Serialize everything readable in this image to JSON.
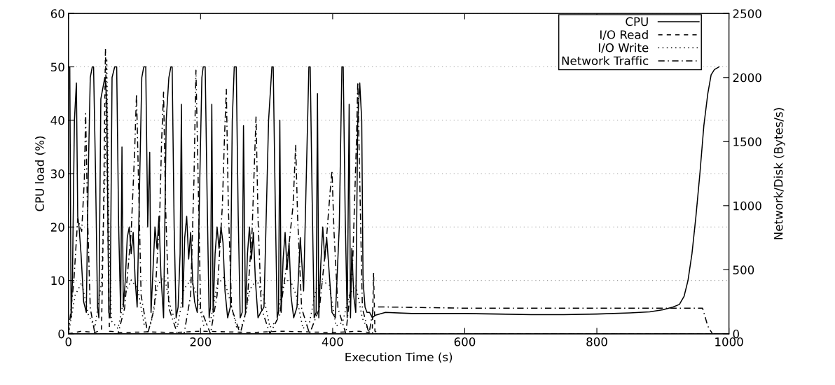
{
  "chart_data": {
    "type": "line",
    "xlabel": "Execution Time (s)",
    "ylabel": "CPU load (%)",
    "y2label": "Network/Disk (Bytes/s)",
    "xlim": [
      0,
      1000
    ],
    "xticks": [
      0,
      200,
      400,
      600,
      800,
      1000
    ],
    "ylim": [
      0,
      60
    ],
    "yticks": [
      0,
      10,
      20,
      30,
      40,
      50,
      60
    ],
    "y2lim": [
      0,
      2500
    ],
    "y2ticks": [
      0,
      500,
      1000,
      1500,
      2000,
      2500
    ],
    "grid": "y",
    "legend": "top right",
    "series": [
      {
        "name": "CPU",
        "color": "#000000",
        "line_style": "solid",
        "x": [
          0,
          2,
          4,
          6,
          9,
          12,
          14,
          16,
          19,
          23,
          27,
          30,
          33,
          36,
          38,
          41,
          44,
          46,
          49,
          52,
          55,
          58,
          61,
          63,
          66,
          70,
          73,
          76,
          79,
          81,
          83,
          86,
          89,
          92,
          95,
          98,
          101,
          104,
          108,
          111,
          114,
          117,
          120,
          123,
          125,
          128,
          131,
          134,
          137,
          140,
          144,
          148,
          152,
          155,
          157,
          160,
          163,
          166,
          169,
          171,
          173,
          176,
          179,
          182,
          185,
          188,
          191,
          195,
          199,
          202,
          204,
          207,
          210,
          213,
          215,
          217,
          219,
          222,
          225,
          228,
          231,
          234,
          237,
          241,
          245,
          248,
          251,
          254,
          257,
          260,
          263,
          265,
          268,
          271,
          274,
          277,
          280,
          283,
          287,
          291,
          296,
          303,
          308,
          310,
          313,
          316,
          318,
          320,
          322,
          325,
          328,
          331,
          334,
          337,
          341,
          346,
          351,
          356,
          364,
          366,
          369,
          372,
          375,
          377,
          379,
          382,
          385,
          388,
          391,
          395,
          399,
          404,
          410,
          414,
          416,
          419,
          422,
          425,
          427,
          429,
          432,
          435,
          438,
          441,
          444,
          446,
          449,
          452,
          456,
          460,
          465,
          480,
          520,
          560,
          600,
          650,
          700,
          750,
          800,
          850,
          880,
          900,
          915,
          925,
          932,
          938,
          944,
          950,
          956,
          962,
          968,
          973,
          978,
          985
        ],
        "values": [
          50,
          50,
          3,
          10,
          40,
          47,
          22,
          20,
          15,
          6,
          4,
          30,
          48,
          50,
          50,
          30,
          5,
          3,
          44,
          46,
          48,
          44,
          4,
          3,
          48,
          50,
          50,
          20,
          4,
          35,
          5,
          10,
          18,
          20,
          15,
          19,
          10,
          5,
          30,
          48,
          50,
          50,
          20,
          34,
          4,
          12,
          20,
          16,
          22,
          11,
          3,
          40,
          48,
          50,
          50,
          20,
          3,
          5,
          15,
          43,
          5,
          18,
          22,
          14,
          19,
          10,
          6,
          4,
          30,
          48,
          50,
          50,
          25,
          3,
          5,
          43,
          4,
          15,
          20,
          16,
          20,
          17,
          8,
          3,
          5,
          40,
          50,
          50,
          22,
          3,
          4,
          39,
          4,
          15,
          20,
          14,
          19,
          10,
          3,
          4,
          5,
          40,
          50,
          50,
          25,
          3,
          4,
          40,
          4,
          14,
          19,
          12,
          17,
          7,
          3,
          5,
          18,
          8,
          50,
          50,
          25,
          3,
          4,
          45,
          3,
          13,
          20,
          14,
          18,
          11,
          4,
          3,
          20,
          50,
          50,
          22,
          3,
          43,
          3,
          16,
          7,
          4,
          40,
          47,
          40,
          10,
          5,
          4,
          4,
          3,
          3.5,
          4,
          3.8,
          3.8,
          3.8,
          3.7,
          3.6,
          3.6,
          3.7,
          3.9,
          4.1,
          4.5,
          5,
          5.5,
          7,
          10,
          15,
          22,
          30,
          39,
          45,
          48.5,
          49.5,
          50
        ]
      },
      {
        "name": "I/O Read",
        "color": "#000000",
        "line_style": "dashed",
        "axis": "y2",
        "x": [
          0,
          20,
          40,
          50,
          53,
          56,
          59,
          62,
          80,
          120,
          160,
          200,
          240,
          280,
          320,
          360,
          400,
          440,
          455,
          460,
          462,
          464,
          470,
          500,
          600,
          700,
          800,
          900,
          1000
        ],
        "values": [
          0,
          20,
          10,
          30,
          900,
          2230,
          1100,
          20,
          10,
          15,
          10,
          20,
          15,
          10,
          20,
          15,
          10,
          20,
          10,
          30,
          475,
          20,
          0,
          0,
          0,
          0,
          0,
          0,
          0
        ]
      },
      {
        "name": "I/O Write",
        "color": "#000000",
        "line_style": "dotted",
        "axis": "y2",
        "x": [
          0,
          10,
          20,
          30,
          40,
          50,
          55,
          58,
          61,
          65,
          75,
          85,
          95,
          105,
          115,
          125,
          135,
          145,
          155,
          165,
          175,
          185,
          195,
          205,
          215,
          225,
          235,
          245,
          255,
          265,
          275,
          285,
          295,
          305,
          315,
          325,
          335,
          345,
          355,
          365,
          375,
          385,
          395,
          405,
          415,
          425,
          435,
          445,
          455,
          465,
          1000
        ],
        "values": [
          0,
          300,
          400,
          150,
          50,
          400,
          1200,
          2150,
          900,
          100,
          40,
          300,
          420,
          350,
          60,
          80,
          380,
          450,
          200,
          50,
          350,
          420,
          300,
          60,
          100,
          380,
          440,
          250,
          40,
          80,
          350,
          420,
          300,
          50,
          100,
          380,
          430,
          300,
          40,
          90,
          350,
          410,
          380,
          60,
          90,
          300,
          380,
          120,
          20,
          0,
          0
        ]
      },
      {
        "name": "Network Traffic",
        "color": "#000000",
        "line_style": "dashdot",
        "axis": "y2",
        "x": [
          0,
          8,
          14,
          20,
          24,
          26,
          29,
          33,
          40,
          60,
          75,
          85,
          95,
          100,
          103,
          106,
          110,
          120,
          130,
          138,
          141,
          144,
          147,
          152,
          165,
          175,
          185,
          190,
          193,
          196,
          200,
          215,
          225,
          233,
          236,
          239,
          242,
          247,
          260,
          270,
          278,
          282,
          284,
          287,
          292,
          305,
          320,
          332,
          340,
          344,
          347,
          353,
          365,
          380,
          390,
          396,
          399,
          402,
          408,
          420,
          430,
          436,
          438,
          441,
          445,
          455,
          462,
          470,
          600,
          800,
          960,
          968,
          975
        ],
        "values": [
          0,
          400,
          900,
          800,
          1200,
          1718,
          900,
          200,
          0,
          0,
          0,
          200,
          800,
          1400,
          1870,
          1200,
          300,
          0,
          200,
          900,
          1500,
          1887,
          1000,
          200,
          0,
          0,
          300,
          1200,
          2057,
          1300,
          200,
          0,
          300,
          1000,
          1500,
          1909,
          1000,
          200,
          0,
          200,
          800,
          1400,
          1696,
          900,
          200,
          0,
          150,
          600,
          1000,
          1471,
          900,
          200,
          0,
          200,
          700,
          1100,
          1275,
          800,
          200,
          0,
          500,
          1500,
          1964,
          1200,
          200,
          0,
          210,
          210,
          200,
          200,
          200,
          60,
          0
        ]
      }
    ]
  }
}
